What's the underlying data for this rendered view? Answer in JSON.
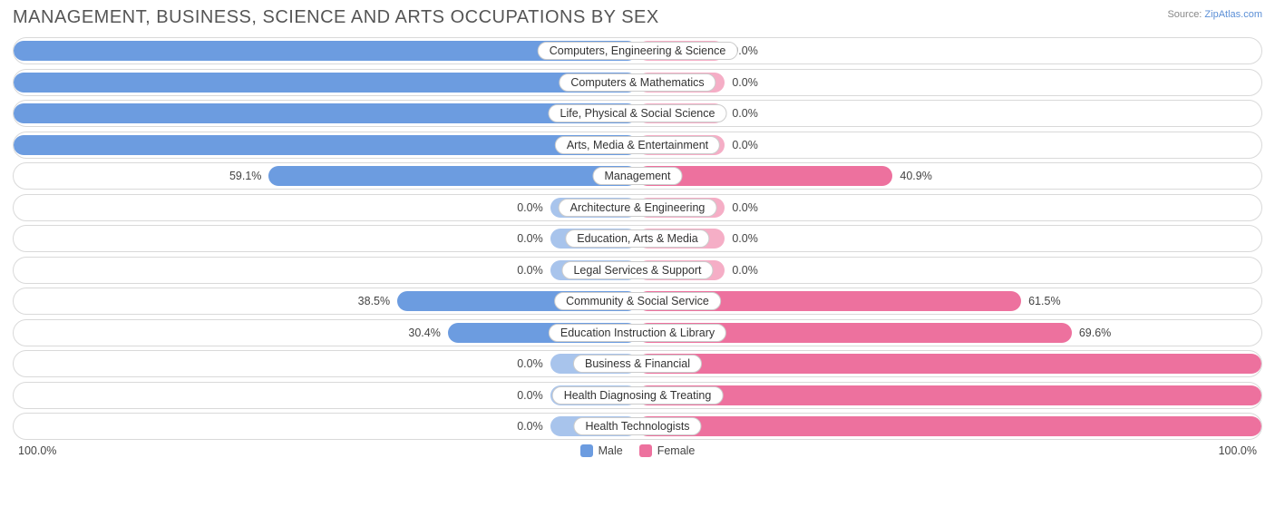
{
  "chart": {
    "type": "diverging-bar",
    "title": "MANAGEMENT, BUSINESS, SCIENCE AND ARTS OCCUPATIONS BY SEX",
    "source_prefix": "Source: ",
    "source_link_text": "ZipAtlas.com",
    "background_color": "#ffffff",
    "row_border_color": "#d9d9d9",
    "label_border_color": "#cccccc",
    "title_color": "#555555",
    "value_color": "#444444",
    "male_color": "#6c9ce0",
    "female_color": "#ed719e",
    "neutral_male_color": "#a8c4ec",
    "neutral_female_color": "#f5aec6",
    "neutral_bar_width_pct": 14,
    "axis_left": "100.0%",
    "axis_right": "100.0%",
    "legend": {
      "male": "Male",
      "female": "Female"
    },
    "rows": [
      {
        "label": "Computers, Engineering & Science",
        "male": 100.0,
        "female": 0.0,
        "neutral": false
      },
      {
        "label": "Computers & Mathematics",
        "male": 100.0,
        "female": 0.0,
        "neutral": false
      },
      {
        "label": "Life, Physical & Social Science",
        "male": 100.0,
        "female": 0.0,
        "neutral": false
      },
      {
        "label": "Arts, Media & Entertainment",
        "male": 100.0,
        "female": 0.0,
        "neutral": false
      },
      {
        "label": "Management",
        "male": 59.1,
        "female": 40.9,
        "neutral": false
      },
      {
        "label": "Architecture & Engineering",
        "male": 0.0,
        "female": 0.0,
        "neutral": true
      },
      {
        "label": "Education, Arts & Media",
        "male": 0.0,
        "female": 0.0,
        "neutral": true
      },
      {
        "label": "Legal Services & Support",
        "male": 0.0,
        "female": 0.0,
        "neutral": true
      },
      {
        "label": "Community & Social Service",
        "male": 38.5,
        "female": 61.5,
        "neutral": false
      },
      {
        "label": "Education Instruction & Library",
        "male": 30.4,
        "female": 69.6,
        "neutral": false
      },
      {
        "label": "Business & Financial",
        "male": 0.0,
        "female": 100.0,
        "neutral": false
      },
      {
        "label": "Health Diagnosing & Treating",
        "male": 0.0,
        "female": 100.0,
        "neutral": false
      },
      {
        "label": "Health Technologists",
        "male": 0.0,
        "female": 100.0,
        "neutral": false
      }
    ]
  }
}
